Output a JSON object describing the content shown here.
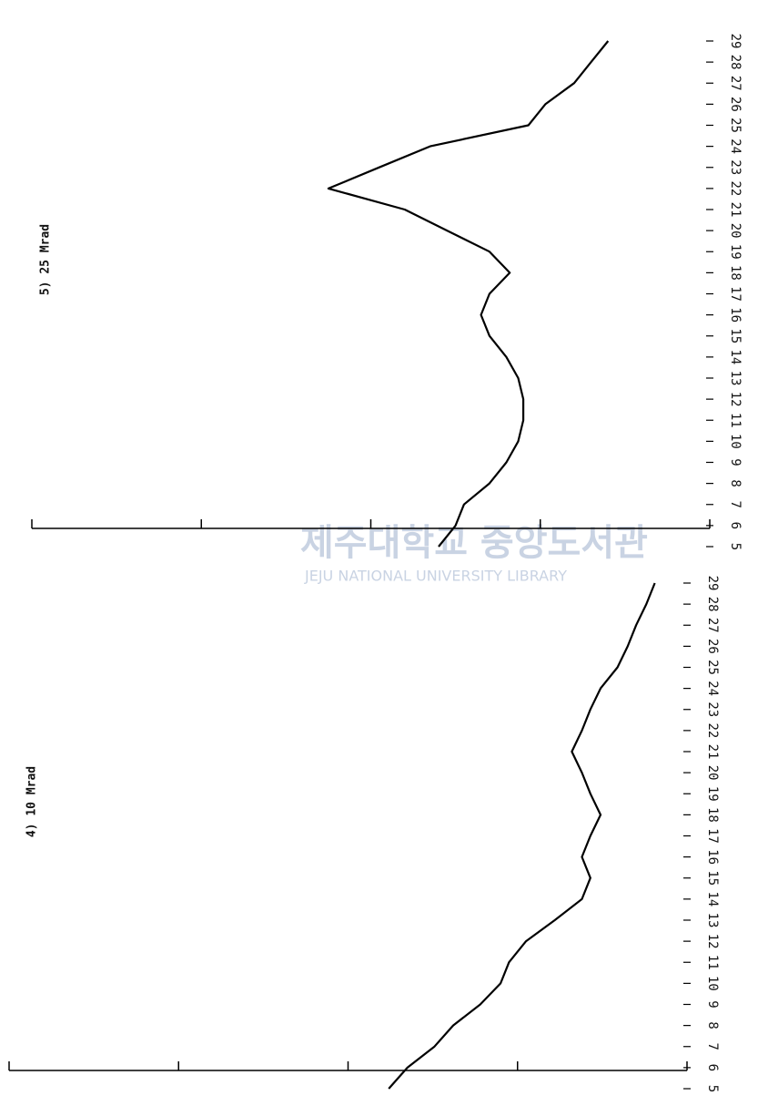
{
  "chart_data": [
    {
      "type": "line",
      "title": "5) 25 Mrad",
      "x": [
        5,
        6,
        7,
        8,
        9,
        10,
        11,
        12,
        13,
        14,
        15,
        16,
        17,
        18,
        19,
        20,
        21,
        22,
        23,
        24,
        25,
        26,
        27,
        28,
        29
      ],
      "values": [
        1.6,
        1.5,
        1.45,
        1.3,
        1.2,
        1.13,
        1.1,
        1.1,
        1.13,
        1.2,
        1.3,
        1.35,
        1.3,
        1.18,
        1.3,
        1.55,
        1.8,
        2.25,
        1.95,
        1.65,
        1.07,
        0.97,
        0.8,
        0.7,
        0.6
      ],
      "color": "#000000",
      "xlim": [
        5,
        29
      ],
      "xticks": [
        5,
        6,
        7,
        8,
        9,
        10,
        11,
        12,
        13,
        14,
        15,
        16,
        17,
        18,
        19,
        20,
        21,
        22,
        23,
        24,
        25,
        26,
        27,
        28,
        29
      ],
      "ylim": [
        0,
        4
      ],
      "yticks": [
        0,
        1,
        2,
        3,
        4
      ]
    },
    {
      "type": "line",
      "title": "4) 10 Mrad",
      "x": [
        5,
        6,
        7,
        8,
        9,
        10,
        11,
        12,
        13,
        14,
        15,
        16,
        17,
        18,
        19,
        20,
        21,
        22,
        23,
        24,
        25,
        26,
        27,
        28,
        29
      ],
      "values": [
        1.76,
        1.65,
        1.49,
        1.38,
        1.22,
        1.1,
        1.05,
        0.95,
        0.78,
        0.62,
        0.57,
        0.62,
        0.57,
        0.51,
        0.57,
        0.62,
        0.68,
        0.62,
        0.57,
        0.51,
        0.41,
        0.35,
        0.3,
        0.24,
        0.19
      ],
      "color": "#000000",
      "xlim": [
        5,
        29
      ],
      "xticks": [
        5,
        6,
        7,
        8,
        9,
        10,
        11,
        12,
        13,
        14,
        15,
        16,
        17,
        18,
        19,
        20,
        21,
        22,
        23,
        24,
        25,
        26,
        27,
        28,
        29
      ],
      "ylim": [
        0,
        4
      ],
      "yticks": [
        0,
        1,
        2,
        3,
        4
      ]
    }
  ],
  "watermark": {
    "korean": "제주대학교 중앙도서관",
    "english": "JEJU NATIONAL UNIVERSITY LIBRARY"
  }
}
